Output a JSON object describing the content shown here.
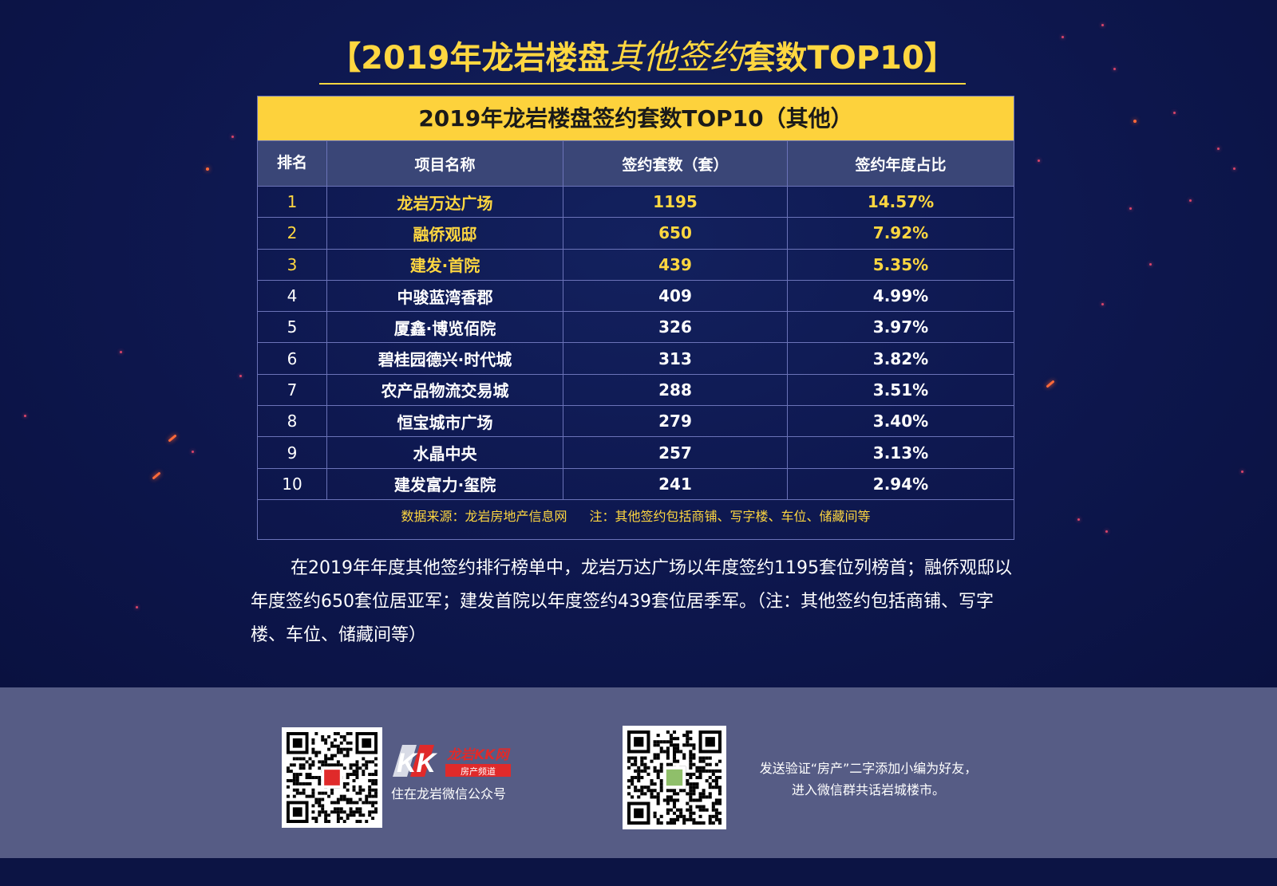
{
  "title": {
    "prefix": "【2019年龙岩楼盘",
    "script": "其他签约",
    "suffix": "套数TOP10】"
  },
  "table": {
    "heading": "2019年龙岩楼盘签约套数TOP10（其他）",
    "columns": [
      "排名",
      "项目名称",
      "签约套数（套）",
      "签约年度占比"
    ],
    "rows": [
      {
        "rank": "1",
        "name": "龙岩万达广场",
        "count": "1195",
        "share": "14.57%"
      },
      {
        "rank": "2",
        "name": "融侨观邸",
        "count": "650",
        "share": "7.92%"
      },
      {
        "rank": "3",
        "name": "建发·首院",
        "count": "439",
        "share": "5.35%"
      },
      {
        "rank": "4",
        "name": "中骏蓝湾香郡",
        "count": "409",
        "share": "4.99%"
      },
      {
        "rank": "5",
        "name": "厦鑫·博览佰院",
        "count": "326",
        "share": "3.97%"
      },
      {
        "rank": "6",
        "name": "碧桂园德兴·时代城",
        "count": "313",
        "share": "3.82%"
      },
      {
        "rank": "7",
        "name": "农产品物流交易城",
        "count": "288",
        "share": "3.51%"
      },
      {
        "rank": "8",
        "name": "恒宝城市广场",
        "count": "279",
        "share": "3.40%"
      },
      {
        "rank": "9",
        "name": "水晶中央",
        "count": "257",
        "share": "3.13%"
      },
      {
        "rank": "10",
        "name": "建发富力·玺院",
        "count": "241",
        "share": "2.94%"
      }
    ],
    "source": "数据来源：龙岩房地产信息网",
    "note": "注：其他签约包括商铺、写字楼、车位、储藏间等"
  },
  "summary": "在2019年年度其他签约排行榜单中，龙岩万达广场以年度签约1195套位列榜首；融侨观邸以年度签约650套位居亚军；建发首院以年度签约439套位居季军。（注：其他签约包括商铺、写字楼、车位、储藏间等）",
  "footer": {
    "brand_name": "龙岩KK网",
    "brand_sub": "房产频道",
    "brand_mark": "KK",
    "qr1_caption": "住在龙岩微信公众号",
    "qr2_line1": "发送验证“房产”二字添加小编为好友，",
    "qr2_line2": "进入微信群共话岩城楼市。"
  },
  "colors": {
    "background": "#0c1444",
    "gold": "#ffd740",
    "header_bar": "#fdd23c",
    "column_header": "#3a4677",
    "footer": "#565c85",
    "brand_red": "#e02a2a"
  }
}
